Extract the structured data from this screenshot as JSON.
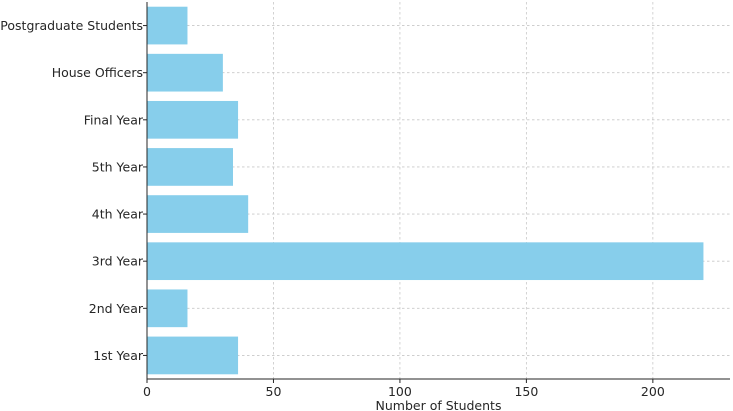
{
  "chart_data": {
    "type": "bar",
    "orientation": "horizontal",
    "categories": [
      "1st Year",
      "2nd Year",
      "3rd Year",
      "4th Year",
      "5th Year",
      "Final Year",
      "House Officers",
      "Postgraduate Students"
    ],
    "values": [
      36,
      16,
      220,
      40,
      34,
      36,
      30,
      16
    ],
    "title": "",
    "xlabel": "Number of Students",
    "ylabel": "",
    "xlim": [
      0,
      230.5
    ],
    "xticks": [
      0,
      50,
      100,
      150,
      200
    ],
    "grid": true,
    "bar_color": "#87ceeb"
  }
}
